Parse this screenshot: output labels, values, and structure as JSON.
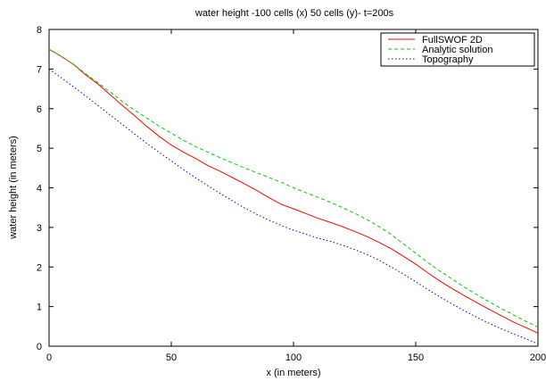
{
  "chart_data": {
    "type": "line",
    "title": "water height -100 cells (x) 50 cells (y)- t=200s",
    "xlabel": "x (in meters)",
    "ylabel": "water height (in meters)",
    "xlim": [
      0,
      200
    ],
    "ylim": [
      0,
      8
    ],
    "xticks": [
      0,
      50,
      100,
      150,
      200
    ],
    "yticks": [
      0,
      1,
      2,
      3,
      4,
      5,
      6,
      7,
      8
    ],
    "grid": false,
    "legend_position": "top-right",
    "series": [
      {
        "name": "FullSWOF 2D",
        "color": "#ff0000",
        "dash": "solid",
        "x": [
          0,
          5,
          10,
          15,
          20,
          25,
          30,
          35,
          40,
          45,
          50,
          55,
          60,
          65,
          70,
          75,
          80,
          85,
          90,
          95,
          100,
          105,
          110,
          115,
          120,
          125,
          130,
          135,
          140,
          145,
          150,
          155,
          160,
          165,
          170,
          175,
          180,
          185,
          190,
          195,
          200
        ],
        "y": [
          7.5,
          7.32,
          7.12,
          6.85,
          6.62,
          6.35,
          6.08,
          5.82,
          5.55,
          5.3,
          5.08,
          4.9,
          4.74,
          4.56,
          4.42,
          4.26,
          4.1,
          3.93,
          3.75,
          3.58,
          3.47,
          3.35,
          3.23,
          3.13,
          3.02,
          2.9,
          2.77,
          2.62,
          2.46,
          2.27,
          2.07,
          1.85,
          1.64,
          1.45,
          1.27,
          1.1,
          0.93,
          0.77,
          0.61,
          0.47,
          0.33
        ]
      },
      {
        "name": "Analytic solution",
        "color": "#00cc00",
        "dash": "dashed",
        "x": [
          0,
          5,
          10,
          15,
          20,
          25,
          30,
          35,
          40,
          45,
          50,
          55,
          60,
          65,
          70,
          75,
          80,
          85,
          90,
          95,
          100,
          105,
          110,
          115,
          120,
          125,
          130,
          135,
          140,
          145,
          150,
          155,
          160,
          165,
          170,
          175,
          180,
          185,
          190,
          195,
          200
        ],
        "y": [
          7.5,
          7.32,
          7.12,
          6.88,
          6.65,
          6.42,
          6.18,
          5.96,
          5.76,
          5.56,
          5.38,
          5.2,
          5.04,
          4.9,
          4.76,
          4.63,
          4.5,
          4.38,
          4.26,
          4.14,
          4.0,
          3.88,
          3.76,
          3.64,
          3.5,
          3.36,
          3.2,
          3.02,
          2.82,
          2.58,
          2.35,
          2.11,
          1.89,
          1.69,
          1.49,
          1.3,
          1.12,
          0.95,
          0.79,
          0.63,
          0.48
        ]
      },
      {
        "name": "Topography",
        "color": "#0000cc",
        "dash": "dotted",
        "x": [
          0,
          5,
          10,
          15,
          20,
          25,
          30,
          35,
          40,
          45,
          50,
          55,
          60,
          65,
          70,
          75,
          80,
          85,
          90,
          95,
          100,
          105,
          110,
          115,
          120,
          125,
          130,
          135,
          140,
          145,
          150,
          155,
          160,
          165,
          170,
          175,
          180,
          185,
          190,
          195,
          200
        ],
        "y": [
          7.0,
          6.78,
          6.55,
          6.32,
          6.08,
          5.84,
          5.6,
          5.36,
          5.12,
          4.9,
          4.68,
          4.46,
          4.25,
          4.05,
          3.86,
          3.67,
          3.49,
          3.33,
          3.18,
          3.05,
          2.93,
          2.83,
          2.73,
          2.65,
          2.55,
          2.44,
          2.32,
          2.17,
          2.0,
          1.82,
          1.63,
          1.43,
          1.24,
          1.06,
          0.89,
          0.73,
          0.58,
          0.44,
          0.31,
          0.19,
          0.06
        ]
      }
    ]
  }
}
